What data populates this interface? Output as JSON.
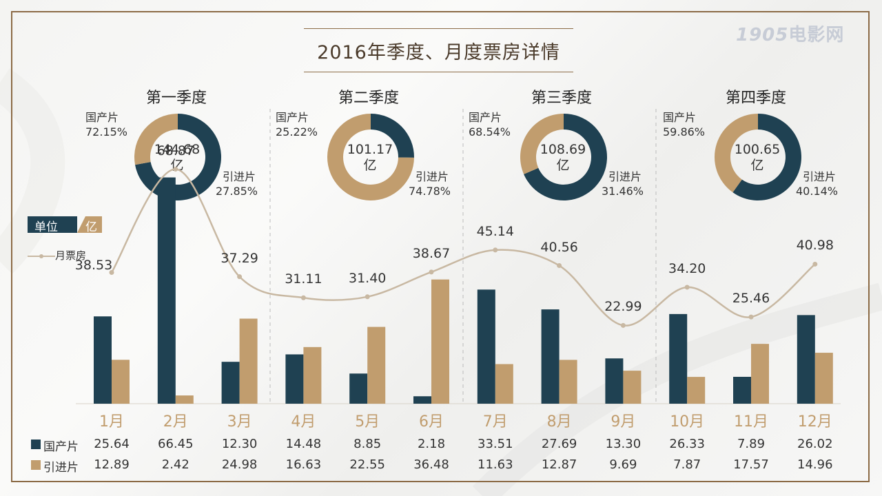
{
  "title": "2016年季度、月度票房详情",
  "logo": {
    "num": "1905",
    "text": "电影网"
  },
  "colors": {
    "domestic": "#1f4152",
    "imported": "#c19d6e",
    "line": "#c8b8a2",
    "month_label": "#c19d6e"
  },
  "unit": {
    "part1": "单位",
    "part2": "亿"
  },
  "legend_line": "月票房",
  "quarters": [
    {
      "title": "第一季度",
      "total": "144.68",
      "unit": "亿",
      "domestic_label": "国产片",
      "domestic_pct": "72.15%",
      "imported_label": "引进片",
      "imported_pct": "27.85%",
      "domestic_share": 72.15
    },
    {
      "title": "第二季度",
      "total": "101.17",
      "unit": "亿",
      "domestic_label": "国产片",
      "domestic_pct": "25.22%",
      "imported_label": "引进片",
      "imported_pct": "74.78%",
      "domestic_share": 25.22
    },
    {
      "title": "第三季度",
      "total": "108.69",
      "unit": "亿",
      "domestic_label": "国产片",
      "domestic_pct": "68.54%",
      "imported_label": "引进片",
      "imported_pct": "31.46%",
      "domestic_share": 68.54
    },
    {
      "title": "第四季度",
      "total": "100.65",
      "unit": "亿",
      "domestic_label": "国产片",
      "domestic_pct": "59.86%",
      "imported_label": "引进片",
      "imported_pct": "40.14%",
      "domestic_share": 59.86
    }
  ],
  "row_labels": {
    "domestic": "国产片",
    "imported": "引进片"
  },
  "chart_data": {
    "type": "bar",
    "categories": [
      "1月",
      "2月",
      "3月",
      "4月",
      "5月",
      "6月",
      "7月",
      "8月",
      "9月",
      "10月",
      "11月",
      "12月"
    ],
    "series": [
      {
        "name": "国产片",
        "values": [
          25.64,
          66.45,
          12.3,
          14.48,
          8.85,
          2.18,
          33.51,
          27.69,
          13.3,
          26.33,
          7.89,
          26.02
        ]
      },
      {
        "name": "引进片",
        "values": [
          12.89,
          2.42,
          24.98,
          16.63,
          22.55,
          36.48,
          11.63,
          12.87,
          9.69,
          7.87,
          17.57,
          14.96
        ]
      }
    ],
    "line": {
      "name": "月票房",
      "values": [
        38.53,
        68.87,
        37.29,
        31.11,
        31.4,
        38.67,
        45.14,
        40.56,
        22.99,
        34.2,
        25.46,
        40.98
      ]
    },
    "domestic_text": [
      "25.64",
      "66.45",
      "12.30",
      "14.48",
      "8.85",
      "2.18",
      "33.51",
      "27.69",
      "13.30",
      "26.33",
      "7.89",
      "26.02"
    ],
    "imported_text": [
      "12.89",
      "2.42",
      "24.98",
      "16.63",
      "22.55",
      "36.48",
      "11.63",
      "12.87",
      "9.69",
      "7.87",
      "17.57",
      "14.96"
    ],
    "line_text": [
      "38.53",
      "68.87",
      "37.29",
      "31.11",
      "31.40",
      "38.67",
      "45.14",
      "40.56",
      "22.99",
      "34.20",
      "25.46",
      "40.98"
    ],
    "ylim": [
      0,
      70
    ]
  }
}
